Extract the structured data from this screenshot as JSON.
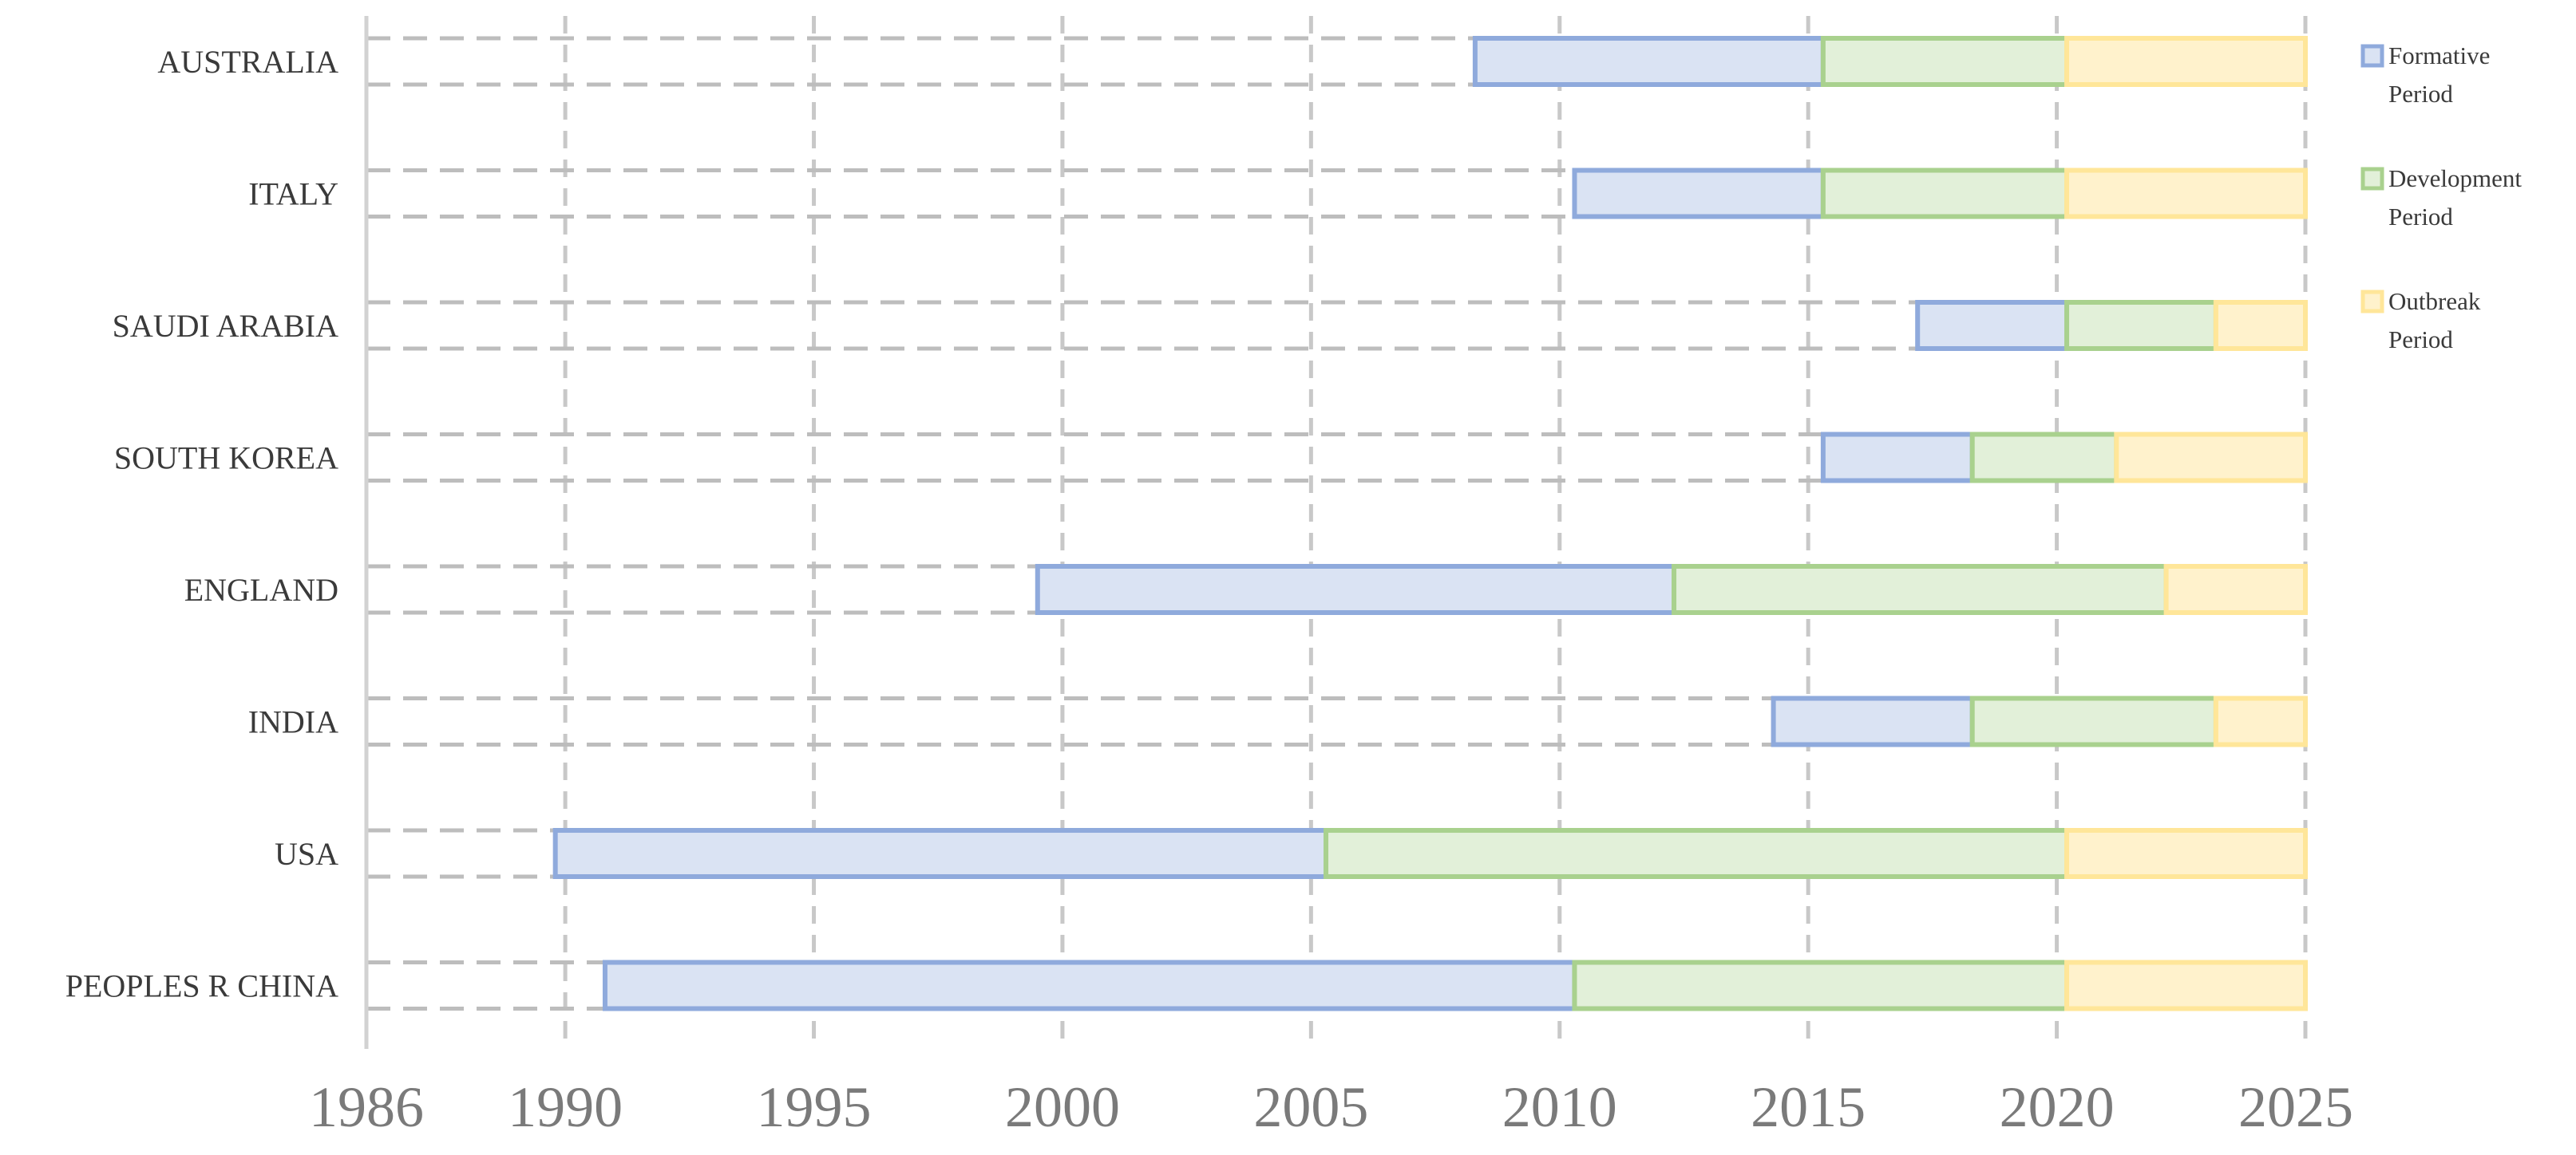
{
  "chart_data": {
    "type": "bar",
    "orientation": "horizontal",
    "stacked": true,
    "title": "",
    "xlabel": "",
    "ylabel": "",
    "xlim": [
      1986,
      2025
    ],
    "x_ticks": [
      "1986",
      "1990",
      "1995",
      "2000",
      "2005",
      "2010",
      "2015",
      "2020",
      "2025"
    ],
    "grid": true,
    "legend_position": "right",
    "categories": [
      "AUSTRALIA",
      "ITALY",
      "SAUDI ARABIA",
      "SOUTH KOREA",
      "ENGLAND",
      "INDIA",
      "USA",
      "PEOPLES R CHINA"
    ],
    "series": [
      {
        "name": "Formative Period",
        "color": "#8FAADC",
        "fill": "#DAE3F3",
        "start": [
          2008.3,
          2010.3,
          2017.2,
          2015.3,
          1999.5,
          2014.3,
          1989.8,
          1990.8
        ],
        "end": [
          2015.3,
          2015.3,
          2020.2,
          2018.3,
          2012.3,
          2018.3,
          2005.3,
          2010.3
        ]
      },
      {
        "name": "Development Period",
        "color": "#A9D18E",
        "fill": "#E2F0D9",
        "start": [
          2015.3,
          2015.3,
          2020.2,
          2018.3,
          2012.3,
          2018.3,
          2005.3,
          2010.3
        ],
        "end": [
          2020.2,
          2020.2,
          2023.2,
          2021.2,
          2022.2,
          2023.2,
          2020.2,
          2020.2
        ]
      },
      {
        "name": "Outbreak Period",
        "color": "#FFE699",
        "fill": "#FFF2CC",
        "start": [
          2020.2,
          2020.2,
          2023.2,
          2021.2,
          2022.2,
          2023.2,
          2020.2,
          2020.2
        ],
        "end": [
          2025,
          2025,
          2025,
          2025,
          2025,
          2025,
          2025,
          2025
        ]
      }
    ],
    "legend": [
      {
        "line1": "Formative",
        "line2": "Period"
      },
      {
        "line1": "Development",
        "line2": "Period"
      },
      {
        "line1": "Outbreak",
        "line2": "Period"
      }
    ]
  }
}
